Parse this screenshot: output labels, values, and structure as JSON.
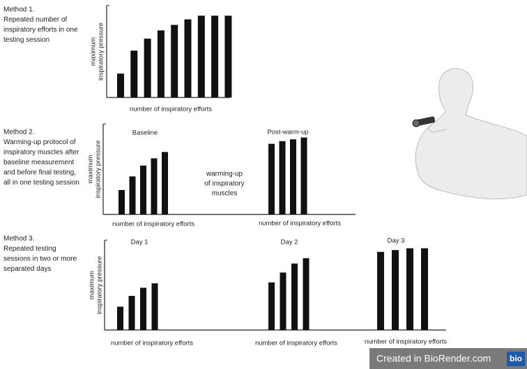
{
  "methods": [
    {
      "lines": [
        "Method 1.",
        "Repeated number of",
        "inspiratory efforts in one",
        "testing session"
      ]
    },
    {
      "lines": [
        "Method 2.",
        "Warming-up protocol of",
        "inspiratory muscles after",
        "baseline measurement",
        "and before final testing,",
        "all in one  testing session"
      ]
    },
    {
      "lines": [
        "Method 3.",
        "Repeated testing",
        "sessions in two or more",
        "separated days"
      ]
    }
  ],
  "chart_data": [
    {
      "type": "bar",
      "color": "#111111",
      "ylim": [
        0,
        100
      ],
      "y_label": [
        "maximum",
        "inspiratory pressure"
      ],
      "groups": [
        {
          "x_label": "number of inspiratory efforts",
          "values": [
            26,
            51,
            64,
            73,
            79,
            85,
            89,
            89,
            89
          ]
        }
      ]
    },
    {
      "type": "bar",
      "color": "#111111",
      "ylim": [
        0,
        100
      ],
      "y_label": [
        "maximum",
        "inspiratory pressure"
      ],
      "annotation": [
        "warming-up",
        "of inspiratory",
        "muscles"
      ],
      "groups": [
        {
          "label": "Baseline",
          "x_label": "number of inspiratory efforts",
          "values": [
            27,
            42,
            54,
            62,
            69
          ]
        },
        {
          "label": "Post-warm-up",
          "x_label": "number of inspiratory efforts",
          "values": [
            78,
            81,
            83,
            85
          ]
        }
      ]
    },
    {
      "type": "bar",
      "color": "#111111",
      "ylim": [
        0,
        100
      ],
      "y_label": [
        "maximum",
        "inspiratory pressure"
      ],
      "groups": [
        {
          "label": "Day 1",
          "x_label": "number of inspiratory efforts",
          "values": [
            26,
            38,
            47,
            52
          ]
        },
        {
          "label": "Day 2",
          "x_label": "number of inspiratory efforts",
          "values": [
            53,
            64,
            74,
            80
          ]
        },
        {
          "label": "Day 3",
          "x_label": "number of inspiratory efforts",
          "values": [
            87,
            89,
            91,
            91
          ]
        }
      ]
    }
  ],
  "watermark": {
    "text": "Created in BioRender.com",
    "logo": "bio"
  }
}
